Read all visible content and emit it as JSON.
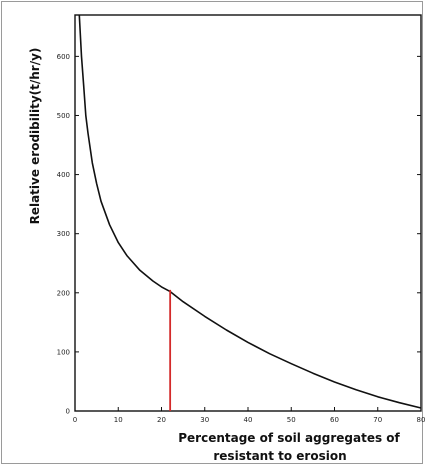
{
  "chart_data": {
    "type": "line",
    "xlabel_lines": [
      "Percentage of soil aggregates of",
      "resistant to erosion"
    ],
    "ylabel": "Relative erodibility(t/hr/y)",
    "xlim": [
      0,
      80
    ],
    "ylim": [
      0,
      670
    ],
    "x_ticks": [
      0,
      10,
      20,
      30,
      40,
      50,
      60,
      70,
      80
    ],
    "y_ticks": [
      0,
      100,
      200,
      300,
      400,
      500,
      600
    ],
    "grid": false,
    "series": [
      {
        "color": "#111111",
        "x": [
          1,
          1.5,
          2,
          2.5,
          3,
          4,
          5,
          6,
          8,
          10,
          12,
          15,
          18,
          20,
          22,
          25,
          30,
          35,
          40,
          45,
          50,
          55,
          60,
          65,
          70,
          75,
          80
        ],
        "y": [
          670,
          600,
          550,
          500,
          470,
          420,
          385,
          355,
          315,
          285,
          263,
          238,
          220,
          210,
          202,
          185,
          160,
          137,
          116,
          97,
          80,
          64,
          49,
          36,
          24,
          14,
          5
        ]
      }
    ],
    "marker_line": {
      "color": "#d42a2a",
      "x": 22,
      "y_from": 0,
      "y_to": 205
    }
  }
}
